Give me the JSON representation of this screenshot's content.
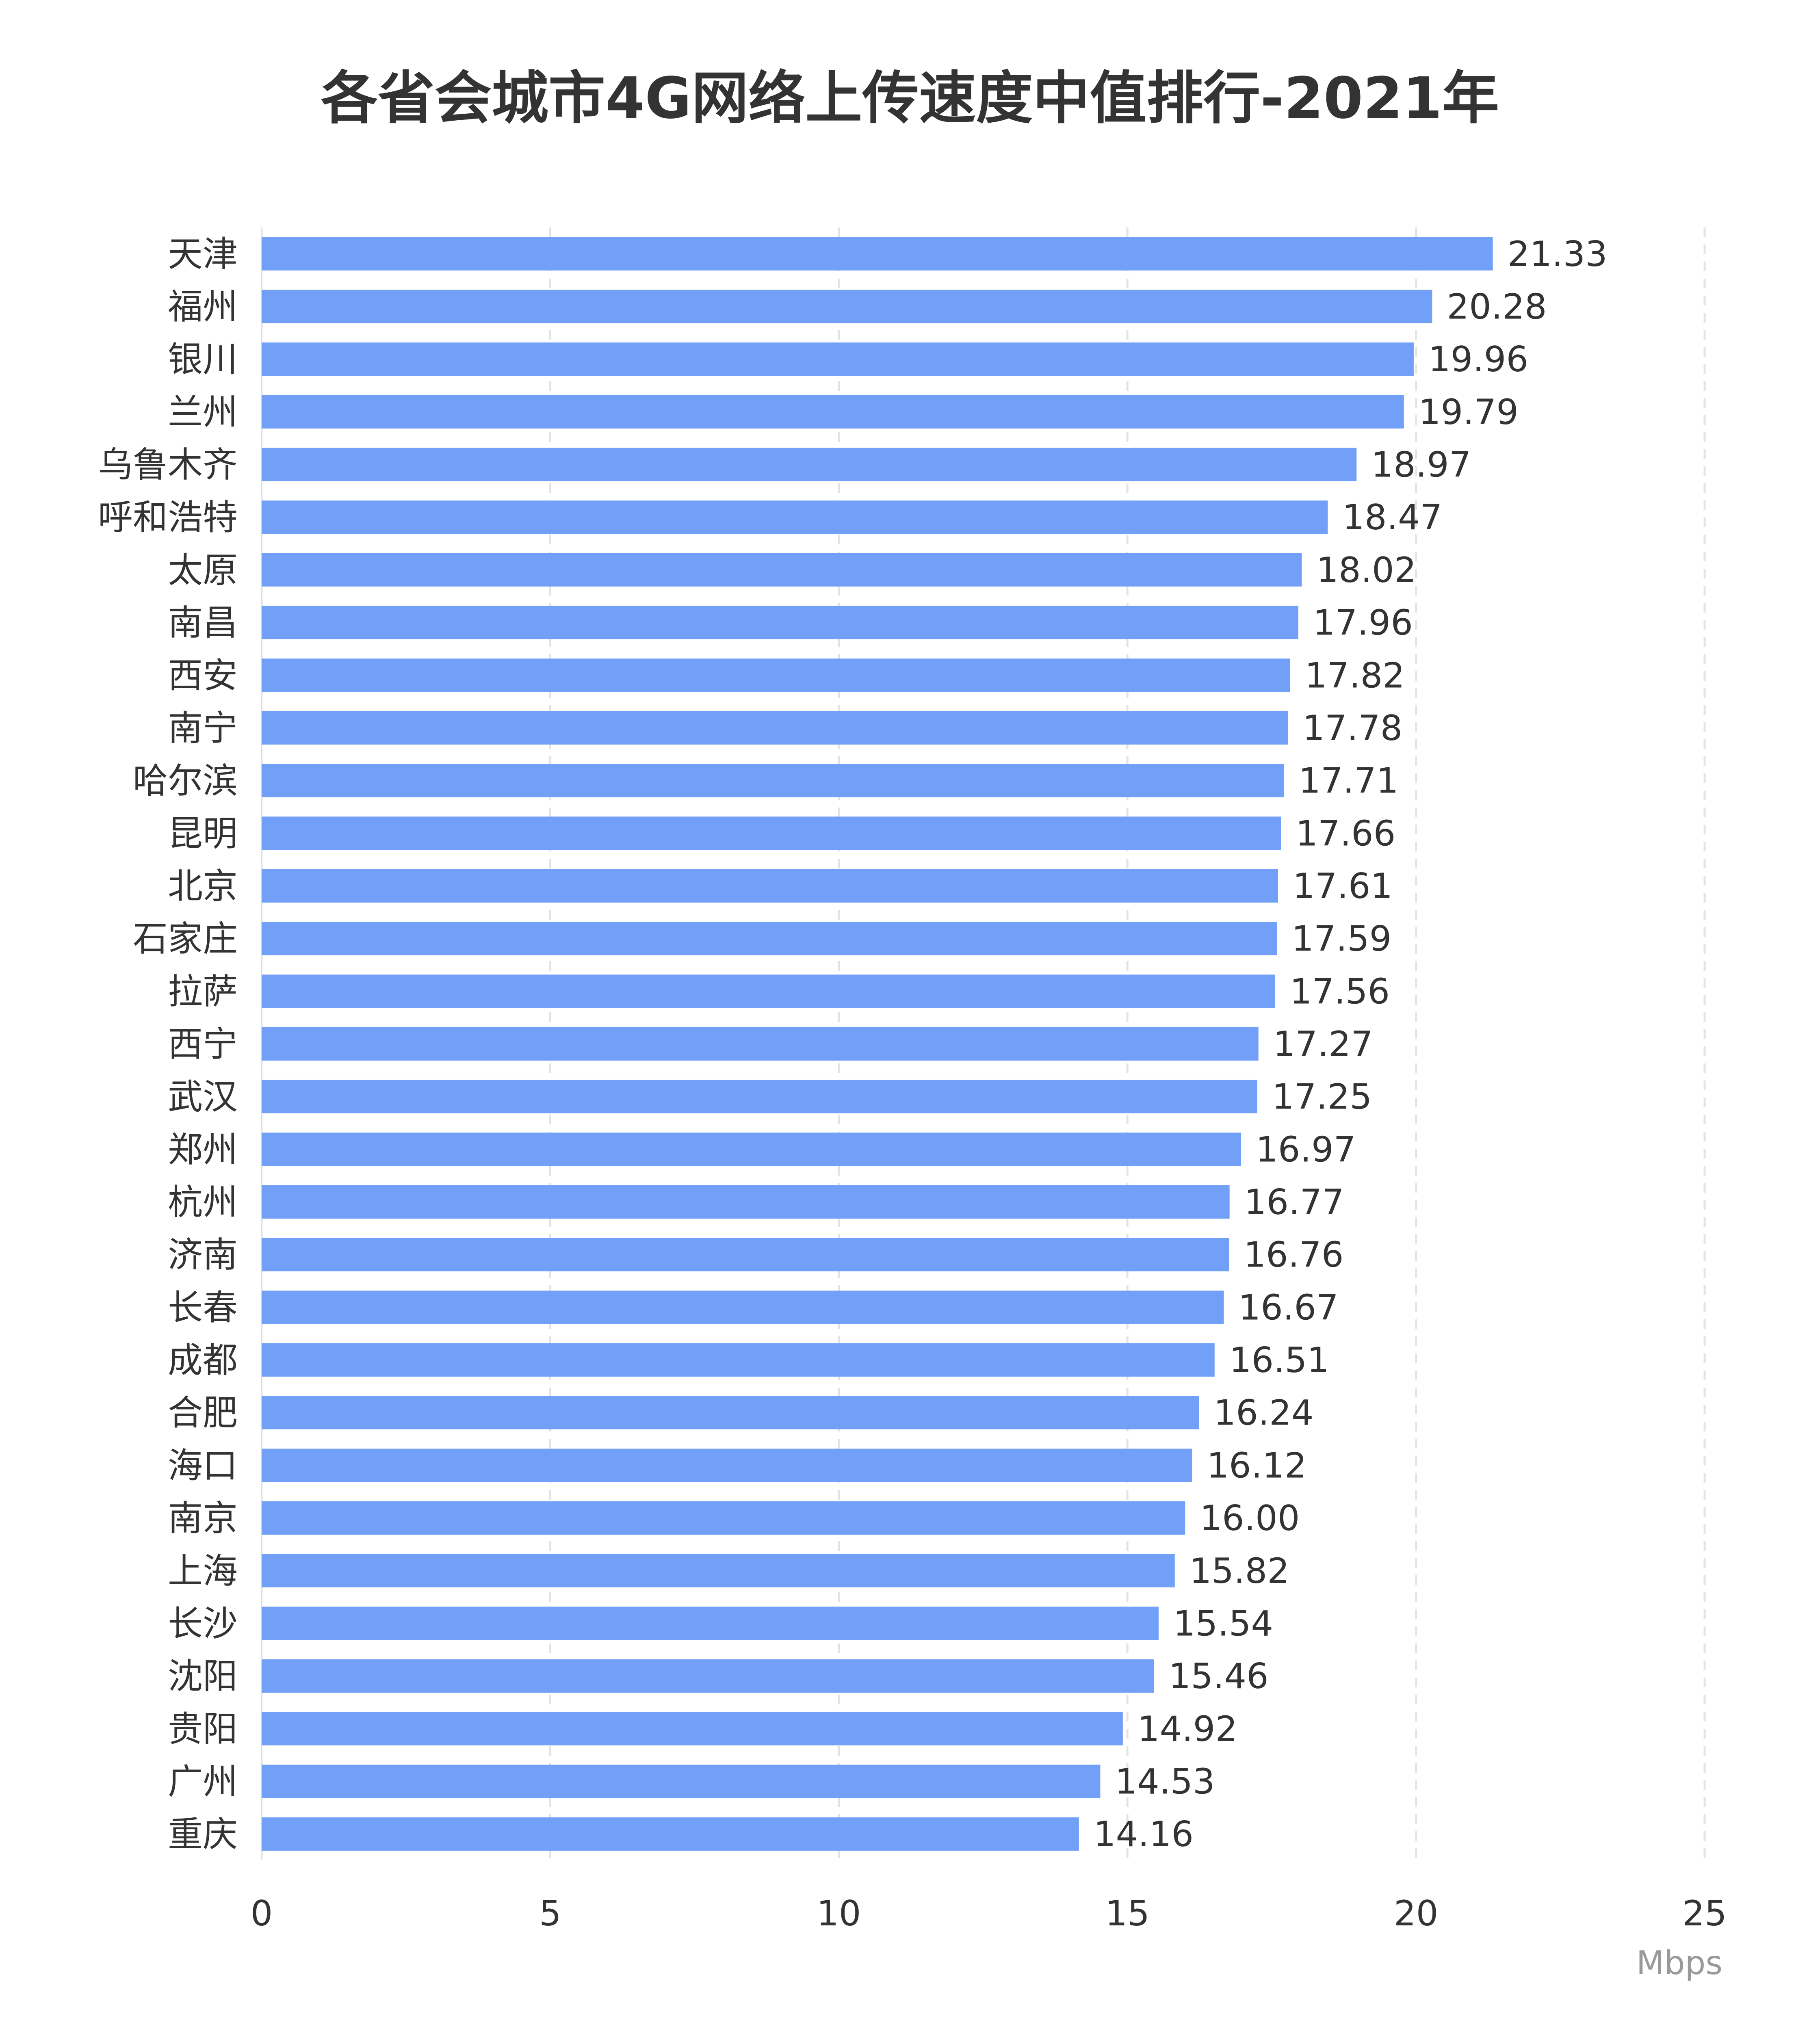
{
  "chart_data": {
    "type": "bar",
    "orientation": "horizontal",
    "title": "各省会城市4G网络上传速度中值排行-2021年",
    "xlabel": "Mbps",
    "ylabel": "",
    "xlim": [
      0,
      25
    ],
    "xticks": [
      "0",
      "5",
      "10",
      "15",
      "20",
      "25"
    ],
    "grid": "vertical dashed",
    "bar_color": "#729ff8",
    "categories": [
      "天津",
      "福州",
      "银川",
      "兰州",
      "乌鲁木齐",
      "呼和浩特",
      "太原",
      "南昌",
      "西安",
      "南宁",
      "哈尔滨",
      "昆明",
      "北京",
      "石家庄",
      "拉萨",
      "西宁",
      "武汉",
      "郑州",
      "杭州",
      "济南",
      "长春",
      "成都",
      "合肥",
      "海口",
      "南京",
      "上海",
      "长沙",
      "沈阳",
      "贵阳",
      "广州",
      "重庆"
    ],
    "values": [
      21.33,
      20.28,
      19.96,
      19.79,
      18.97,
      18.47,
      18.02,
      17.96,
      17.82,
      17.78,
      17.71,
      17.66,
      17.61,
      17.59,
      17.56,
      17.27,
      17.25,
      16.97,
      16.77,
      16.76,
      16.67,
      16.51,
      16.24,
      16.12,
      16.0,
      15.82,
      15.54,
      15.46,
      14.92,
      14.53,
      14.16
    ],
    "value_labels": [
      "21.33",
      "20.28",
      "19.96",
      "19.79",
      "18.97",
      "18.47",
      "18.02",
      "17.96",
      "17.82",
      "17.78",
      "17.71",
      "17.66",
      "17.61",
      "17.59",
      "17.56",
      "17.27",
      "17.25",
      "16.97",
      "16.77",
      "16.76",
      "16.67",
      "16.51",
      "16.24",
      "16.12",
      "16.00",
      "15.82",
      "15.54",
      "15.46",
      "14.92",
      "14.53",
      "14.16"
    ]
  }
}
